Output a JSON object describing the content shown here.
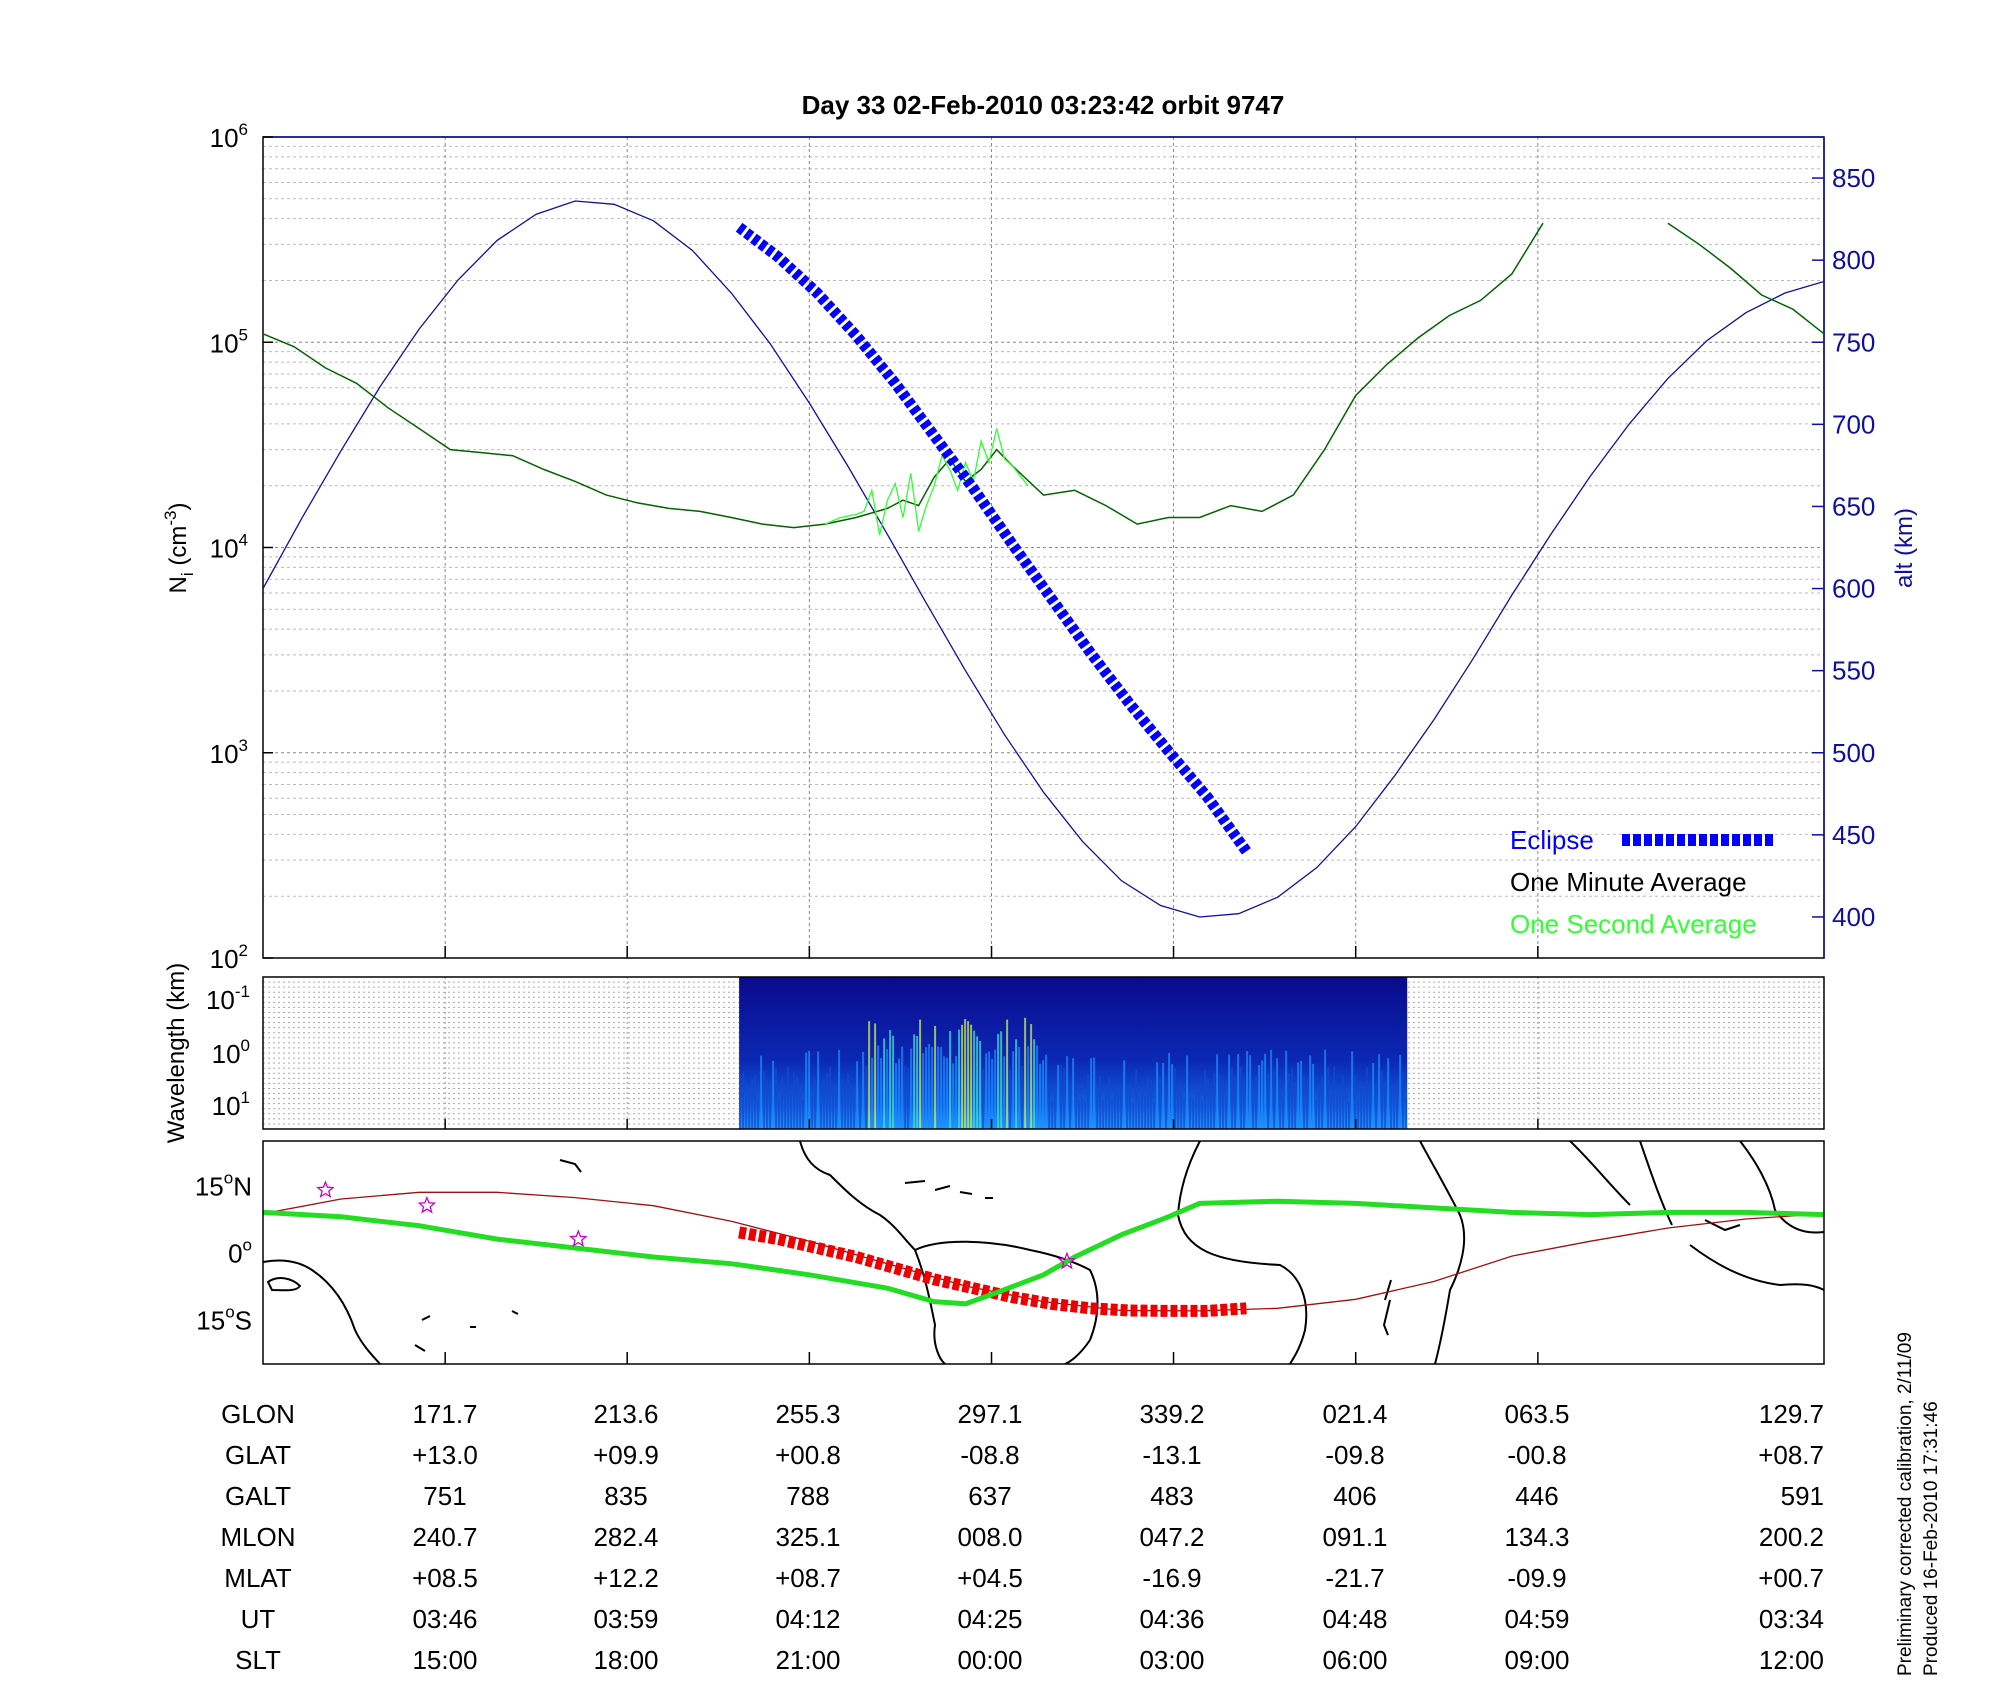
{
  "title": "Day 33  02-Feb-2010 03:23:42   orbit 9747",
  "footnote": {
    "line1": "Preliminary corrected calibration, 2/11/09",
    "line2": "Produced 16-Feb-2010 17:31:46"
  },
  "colors": {
    "altitude": "#1010a0",
    "eclipse": "#0000ff",
    "minute_avg": "#006400",
    "second_avg": "#33ff33",
    "track": "#a01010",
    "eclipse_track": "#ee0000",
    "magnetic_equator": "#22dd22",
    "star_marker": "#cc00cc"
  },
  "chart_data": [
    {
      "type": "line",
      "name": "density",
      "ylabel_base": "N",
      "ylabel_sub": "i",
      "ylabel_unit_open": " (cm",
      "ylabel_unit_exp": "-3",
      "ylabel_unit_close": ")",
      "yscale": "log",
      "ylim": [
        100,
        1000000
      ],
      "yticks": [
        {
          "base": "10",
          "exp": "2",
          "value": 100
        },
        {
          "base": "10",
          "exp": "3",
          "value": 1000
        },
        {
          "base": "10",
          "exp": "4",
          "value": 10000
        },
        {
          "base": "10",
          "exp": "5",
          "value": 100000
        },
        {
          "base": "10",
          "exp": "6",
          "value": 1000000
        }
      ],
      "y2label": "alt (km)",
      "y2lim": [
        375,
        875
      ],
      "y2ticks": [
        "400",
        "450",
        "500",
        "550",
        "600",
        "650",
        "700",
        "750",
        "800",
        "850"
      ],
      "xlim": [
        0,
        1
      ],
      "x_gridlines": [
        0.1167,
        0.2333,
        0.35,
        0.4667,
        0.5833,
        0.7,
        0.8167
      ],
      "grid": true,
      "legend_position": "bottom-right",
      "series": [
        {
          "name": "One Minute Average",
          "x": [
            0,
            0.02,
            0.04,
            0.06,
            0.08,
            0.1,
            0.12,
            0.14,
            0.16,
            0.18,
            0.2,
            0.22,
            0.24,
            0.26,
            0.28,
            0.3,
            0.32,
            0.34,
            0.36,
            0.38,
            0.4,
            0.41,
            0.42,
            0.43,
            0.44,
            0.45,
            0.46,
            0.47,
            0.48,
            0.5,
            0.52,
            0.54,
            0.56,
            0.58,
            0.6,
            0.62,
            0.64,
            0.66,
            0.68,
            0.7,
            0.72,
            0.74,
            0.76,
            0.78,
            0.8,
            0.82,
            0.84,
            0.9,
            0.92,
            0.94,
            0.96,
            0.98,
            1.0
          ],
          "y": [
            110000,
            95000,
            75000,
            63000,
            48000,
            38000,
            30000,
            29000,
            28000,
            24000,
            21000,
            18000,
            16500,
            15500,
            15000,
            14000,
            13000,
            12500,
            13000,
            14000,
            15500,
            17000,
            16000,
            22000,
            27000,
            21000,
            24000,
            30000,
            25000,
            18000,
            19000,
            16000,
            13000,
            14000,
            14000,
            16000,
            15000,
            18000,
            30000,
            55000,
            78000,
            105000,
            135000,
            160000,
            215000,
            380000,
            null,
            380000,
            300000,
            230000,
            170000,
            145000,
            110000
          ]
        },
        {
          "name": "One Second Average",
          "x": [
            0.36,
            0.37,
            0.38,
            0.385,
            0.39,
            0.395,
            0.4,
            0.405,
            0.41,
            0.415,
            0.42,
            0.425,
            0.43,
            0.435,
            0.44,
            0.445,
            0.45,
            0.455,
            0.46,
            0.465,
            0.47,
            0.475,
            0.48,
            0.49
          ],
          "y": [
            13000,
            14000,
            14500,
            15000,
            19000,
            11500,
            17000,
            20500,
            14000,
            23000,
            12000,
            16000,
            20000,
            28000,
            24000,
            19000,
            26000,
            21000,
            33000,
            26000,
            38000,
            27000,
            25000,
            20000
          ]
        },
        {
          "name": "altitude",
          "axis": "right",
          "x": [
            0,
            0.025,
            0.05,
            0.075,
            0.1,
            0.125,
            0.15,
            0.175,
            0.2,
            0.225,
            0.25,
            0.275,
            0.3,
            0.325,
            0.35,
            0.375,
            0.4,
            0.425,
            0.45,
            0.475,
            0.5,
            0.525,
            0.55,
            0.575,
            0.6,
            0.625,
            0.65,
            0.675,
            0.7,
            0.725,
            0.75,
            0.775,
            0.8,
            0.825,
            0.85,
            0.875,
            0.9,
            0.925,
            0.95,
            0.975,
            1.0
          ],
          "y": [
            600,
            643,
            684,
            723,
            758,
            788,
            812,
            828,
            836,
            834,
            824,
            806,
            780,
            749,
            713,
            674,
            633,
            591,
            550,
            511,
            476,
            446,
            422,
            407,
            400,
            402,
            412,
            430,
            455,
            486,
            520,
            557,
            596,
            633,
            668,
            700,
            728,
            751,
            768,
            780,
            787
          ]
        },
        {
          "name": "Eclipse",
          "axis": "right",
          "x": [
            0.305,
            0.33,
            0.355,
            0.38,
            0.405,
            0.43,
            0.455,
            0.48,
            0.505,
            0.53,
            0.555,
            0.58,
            0.605,
            0.63
          ],
          "y": [
            820,
            802,
            780,
            754,
            725,
            693,
            661,
            627,
            594,
            561,
            530,
            501,
            473,
            440
          ]
        }
      ]
    },
    {
      "type": "heatmap",
      "name": "spectrogram",
      "ylabel": "Wavelength (km)",
      "yticks": [
        {
          "base": "10",
          "exp": "-1"
        },
        {
          "base": "10",
          "exp": "0"
        },
        {
          "base": "10",
          "exp": "1"
        }
      ],
      "data_extent_x": [
        0.305,
        0.733
      ]
    },
    {
      "type": "line",
      "name": "ground-track map",
      "yticks": [
        {
          "num": "15",
          "hemi": "N",
          "lat": 15
        },
        {
          "num": "0",
          "hemi": "",
          "lat": 0
        },
        {
          "num": "15",
          "hemi": "S",
          "lat": -15
        }
      ],
      "ylim": [
        -25,
        25
      ],
      "series": [
        {
          "name": "ground track",
          "x": [
            0,
            0.05,
            0.1,
            0.15,
            0.2,
            0.25,
            0.3,
            0.35,
            0.4,
            0.45,
            0.5,
            0.55,
            0.6,
            0.65,
            0.7,
            0.75,
            0.8,
            0.85,
            0.9,
            0.95,
            1.0
          ],
          "y": [
            8.7,
            12,
            13.5,
            13.5,
            12.3,
            10.5,
            7,
            2.5,
            -2.5,
            -7.5,
            -11,
            -13,
            -13.1,
            -12.5,
            -10.5,
            -6.5,
            -0.8,
            2.5,
            5.5,
            7.5,
            8.7
          ]
        },
        {
          "name": "eclipse track",
          "x": [
            0.305,
            0.33,
            0.355,
            0.38,
            0.405,
            0.43,
            0.455,
            0.48,
            0.505,
            0.53,
            0.555,
            0.58,
            0.605,
            0.63
          ],
          "y": [
            4.5,
            3,
            1,
            -1,
            -3.5,
            -6,
            -8,
            -10,
            -11.5,
            -12.5,
            -13,
            -13.1,
            -13.1,
            -12.5
          ]
        },
        {
          "name": "magnetic equator",
          "x": [
            0,
            0.05,
            0.1,
            0.15,
            0.2,
            0.25,
            0.3,
            0.35,
            0.4,
            0.43,
            0.45,
            0.47,
            0.5,
            0.52,
            0.55,
            0.58,
            0.6,
            0.65,
            0.7,
            0.75,
            0.8,
            0.85,
            0.9,
            0.95,
            1.0
          ],
          "y": [
            9,
            8,
            6,
            3,
            1,
            -1,
            -2.5,
            -5,
            -8,
            -11,
            -11.5,
            -9,
            -5,
            -1,
            4,
            8,
            11,
            11.5,
            11,
            10,
            9,
            8.5,
            9,
            9,
            8.5
          ]
        },
        {
          "name": "stars",
          "x": [
            0.04,
            0.105,
            0.202,
            0.515
          ],
          "y": [
            14,
            10.5,
            3,
            -2
          ]
        }
      ]
    }
  ],
  "table": {
    "rows": [
      {
        "label": "GLON",
        "values": [
          "171.7",
          "213.6",
          "255.3",
          "297.1",
          "339.2",
          "021.4",
          "063.5",
          "129.7"
        ]
      },
      {
        "label": "GLAT",
        "values": [
          "+13.0",
          "+09.9",
          "+00.8",
          "-08.8",
          "-13.1",
          "-09.8",
          "-00.8",
          "+08.7"
        ]
      },
      {
        "label": "GALT",
        "values": [
          "751",
          "835",
          "788",
          "637",
          "483",
          "406",
          "446",
          "591"
        ]
      },
      {
        "label": "MLON",
        "values": [
          "240.7",
          "282.4",
          "325.1",
          "008.0",
          "047.2",
          "091.1",
          "134.3",
          "200.2"
        ]
      },
      {
        "label": "MLAT",
        "values": [
          "+08.5",
          "+12.2",
          "+08.7",
          "+04.5",
          "-16.9",
          "-21.7",
          "-09.9",
          "+00.7"
        ]
      },
      {
        "label": "UT",
        "values": [
          "03:46",
          "03:59",
          "04:12",
          "04:25",
          "04:36",
          "04:48",
          "04:59",
          "03:34"
        ]
      },
      {
        "label": "SLT",
        "values": [
          "15:00",
          "18:00",
          "21:00",
          "00:00",
          "03:00",
          "06:00",
          "09:00",
          "12:00"
        ]
      }
    ]
  }
}
